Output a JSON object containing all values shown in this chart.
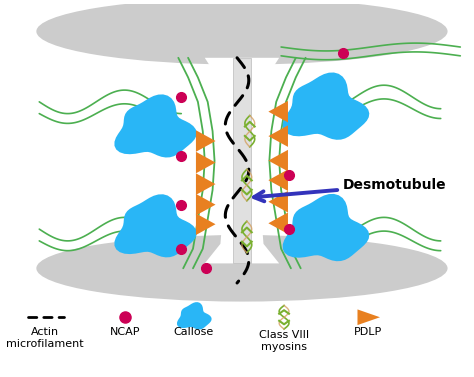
{
  "bg_color": "#ffffff",
  "cell_wall_color": "#cccccc",
  "channel_color": "#e8e8e8",
  "pm_color": "#4CAF50",
  "ncap_color": "#cc0055",
  "callose_color": "#29b6f6",
  "pdlp_color": "#e88020",
  "class8_color": "#7ab030",
  "desmo_label_color": "#3333bb",
  "font_size": 8,
  "desmotubule_label": "Desmotubule",
  "legend_items": [
    "Actin\nmicrofilament",
    "NCAP",
    "Callose",
    "Class VIII\nmyosins",
    "PDLP"
  ]
}
